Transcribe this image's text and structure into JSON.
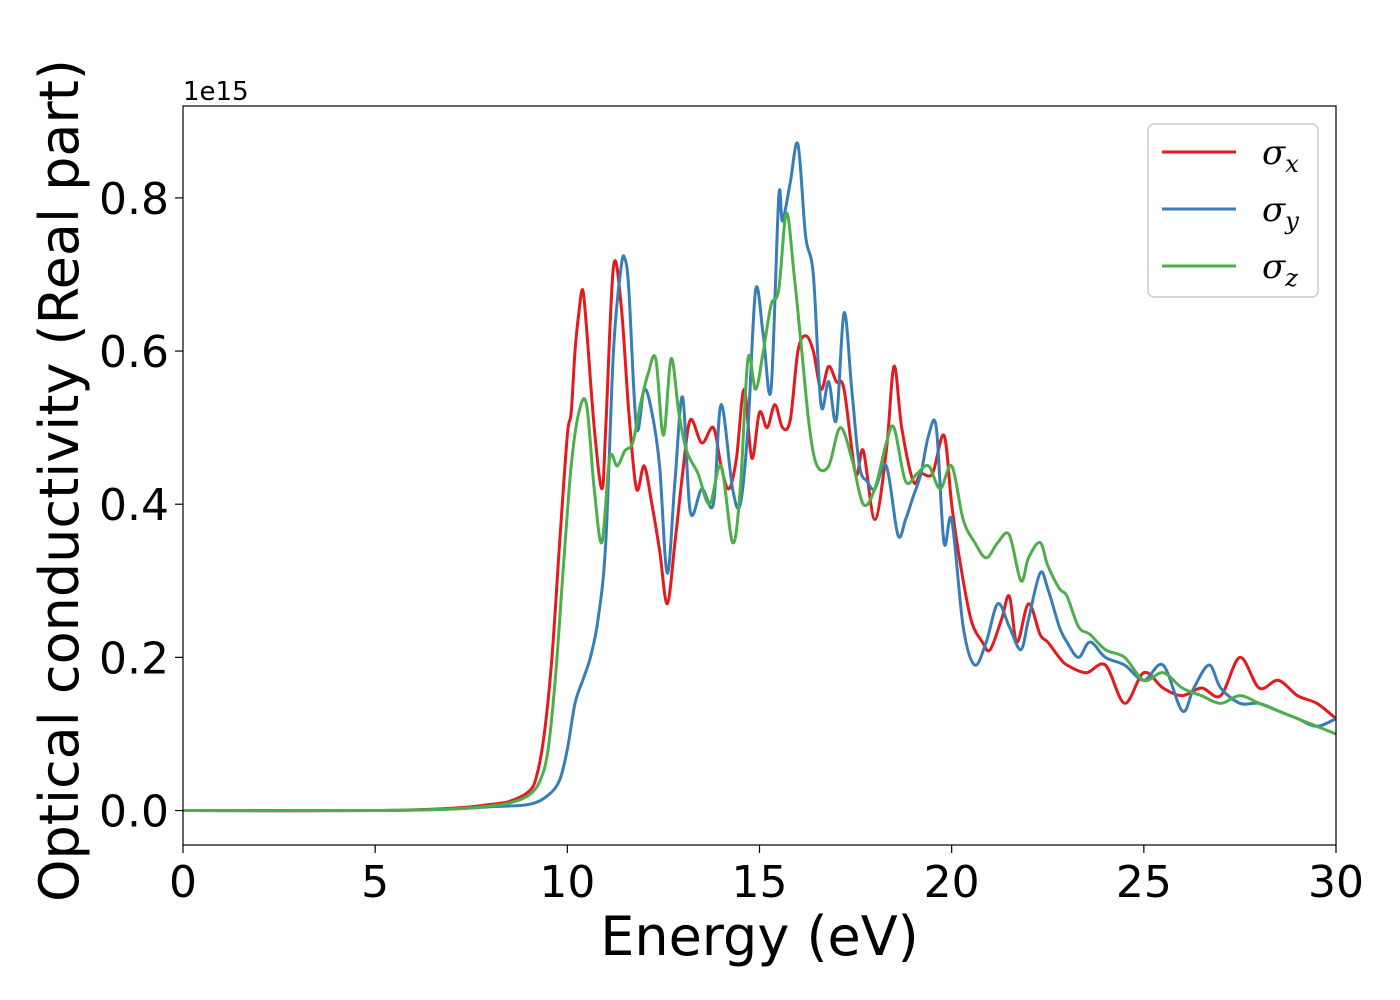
{
  "chart_data": {
    "type": "line",
    "xlabel": "Energy (eV)",
    "ylabel": "Optical conductivity (Real part)",
    "y_offset_label": "1e15",
    "xlim": [
      0,
      30
    ],
    "ylim": [
      -0.045,
      0.92
    ],
    "xticks": [
      0,
      5,
      10,
      15,
      20,
      25,
      30
    ],
    "yticks": [
      0.0,
      0.2,
      0.4,
      0.6,
      0.8
    ],
    "ytick_labels": [
      "0.0",
      "0.2",
      "0.4",
      "0.6",
      "0.8"
    ],
    "grid": false,
    "legend_position": "top-right",
    "series": [
      {
        "name": "σx",
        "legend": {
          "symbol": "σ",
          "sub": "x"
        },
        "color": "#e41a1c",
        "x": [
          0,
          5,
          7,
          8,
          8.5,
          9,
          9.2,
          9.4,
          9.6,
          9.8,
          10.0,
          10.1,
          10.2,
          10.3,
          10.4,
          10.5,
          10.7,
          10.9,
          11.0,
          11.2,
          11.4,
          11.6,
          11.8,
          12.0,
          12.2,
          12.4,
          12.6,
          12.8,
          13.0,
          13.2,
          13.5,
          13.8,
          14.0,
          14.2,
          14.4,
          14.6,
          14.8,
          15.0,
          15.2,
          15.4,
          15.6,
          15.8,
          16.0,
          16.2,
          16.4,
          16.6,
          16.8,
          17.0,
          17.2,
          17.5,
          17.7,
          18.0,
          18.3,
          18.5,
          18.7,
          19.0,
          19.2,
          19.5,
          19.8,
          20.0,
          20.2,
          20.5,
          20.8,
          21.0,
          21.3,
          21.5,
          21.7,
          22.0,
          22.3,
          22.5,
          22.8,
          23.0,
          23.5,
          24.0,
          24.5,
          25.0,
          25.5,
          26.0,
          26.5,
          27.0,
          27.5,
          28.0,
          28.5,
          29.0,
          29.5,
          30.0
        ],
        "y": [
          0,
          0,
          0.003,
          0.008,
          0.012,
          0.025,
          0.045,
          0.1,
          0.2,
          0.35,
          0.49,
          0.52,
          0.6,
          0.65,
          0.68,
          0.63,
          0.5,
          0.42,
          0.5,
          0.71,
          0.66,
          0.52,
          0.42,
          0.45,
          0.4,
          0.34,
          0.27,
          0.35,
          0.44,
          0.51,
          0.48,
          0.5,
          0.45,
          0.42,
          0.46,
          0.55,
          0.46,
          0.52,
          0.5,
          0.53,
          0.5,
          0.51,
          0.6,
          0.62,
          0.6,
          0.55,
          0.58,
          0.56,
          0.55,
          0.44,
          0.47,
          0.38,
          0.47,
          0.58,
          0.5,
          0.43,
          0.44,
          0.44,
          0.49,
          0.4,
          0.33,
          0.25,
          0.22,
          0.21,
          0.25,
          0.28,
          0.22,
          0.27,
          0.23,
          0.22,
          0.2,
          0.19,
          0.18,
          0.19,
          0.14,
          0.18,
          0.16,
          0.15,
          0.16,
          0.15,
          0.2,
          0.16,
          0.17,
          0.15,
          0.14,
          0.12
        ]
      },
      {
        "name": "σy",
        "legend": {
          "symbol": "σ",
          "sub": "y"
        },
        "color": "#377eb8",
        "x": [
          0,
          5,
          7,
          8,
          9,
          9.5,
          9.8,
          10.0,
          10.2,
          10.4,
          10.6,
          10.8,
          11.0,
          11.2,
          11.4,
          11.5,
          11.6,
          11.8,
          12.0,
          12.2,
          12.4,
          12.6,
          12.8,
          13.0,
          13.2,
          13.5,
          13.8,
          14.0,
          14.3,
          14.5,
          14.7,
          14.9,
          15.1,
          15.3,
          15.5,
          15.6,
          15.8,
          16.0,
          16.2,
          16.4,
          16.6,
          16.8,
          17.0,
          17.2,
          17.4,
          17.6,
          17.8,
          18.0,
          18.3,
          18.6,
          18.8,
          19.0,
          19.2,
          19.4,
          19.6,
          19.8,
          20.0,
          20.3,
          20.6,
          20.9,
          21.2,
          21.5,
          21.8,
          22.0,
          22.3,
          22.5,
          22.8,
          23.0,
          23.3,
          23.6,
          24.0,
          24.5,
          25.0,
          25.5,
          26.0,
          26.3,
          26.7,
          27.0,
          27.5,
          28.0,
          28.5,
          29.0,
          29.5,
          30.0
        ],
        "y": [
          0,
          0,
          0.002,
          0.005,
          0.008,
          0.02,
          0.04,
          0.08,
          0.14,
          0.17,
          0.2,
          0.25,
          0.35,
          0.6,
          0.71,
          0.72,
          0.68,
          0.5,
          0.55,
          0.52,
          0.45,
          0.31,
          0.43,
          0.54,
          0.39,
          0.42,
          0.4,
          0.53,
          0.42,
          0.4,
          0.5,
          0.68,
          0.62,
          0.55,
          0.8,
          0.77,
          0.82,
          0.87,
          0.75,
          0.7,
          0.53,
          0.56,
          0.51,
          0.65,
          0.55,
          0.45,
          0.43,
          0.42,
          0.45,
          0.36,
          0.38,
          0.41,
          0.44,
          0.49,
          0.5,
          0.35,
          0.38,
          0.24,
          0.19,
          0.22,
          0.27,
          0.24,
          0.21,
          0.25,
          0.31,
          0.29,
          0.24,
          0.22,
          0.2,
          0.22,
          0.2,
          0.19,
          0.17,
          0.19,
          0.13,
          0.16,
          0.19,
          0.16,
          0.14,
          0.14,
          0.13,
          0.12,
          0.11,
          0.12
        ]
      },
      {
        "name": "σz",
        "legend": {
          "symbol": "σ",
          "sub": "z"
        },
        "color": "#4daf4a",
        "x": [
          0,
          5,
          7,
          8,
          8.5,
          9,
          9.3,
          9.5,
          9.7,
          9.9,
          10.1,
          10.3,
          10.5,
          10.7,
          10.9,
          11.1,
          11.3,
          11.5,
          11.7,
          11.9,
          12.1,
          12.3,
          12.5,
          12.7,
          12.9,
          13.1,
          13.4,
          13.7,
          14.0,
          14.3,
          14.5,
          14.7,
          14.9,
          15.1,
          15.3,
          15.5,
          15.7,
          15.9,
          16.1,
          16.3,
          16.5,
          16.8,
          17.1,
          17.4,
          17.7,
          18.0,
          18.3,
          18.5,
          18.8,
          19.1,
          19.4,
          19.7,
          20.0,
          20.3,
          20.6,
          20.9,
          21.2,
          21.5,
          21.8,
          22.0,
          22.3,
          22.5,
          22.8,
          23.0,
          23.3,
          23.6,
          24.0,
          24.5,
          25.0,
          25.5,
          26.0,
          26.5,
          27.0,
          27.5,
          28.0,
          28.5,
          29.0,
          29.5,
          30.0
        ],
        "y": [
          0,
          0,
          0.002,
          0.006,
          0.01,
          0.02,
          0.04,
          0.08,
          0.18,
          0.32,
          0.45,
          0.52,
          0.53,
          0.42,
          0.35,
          0.46,
          0.45,
          0.47,
          0.48,
          0.53,
          0.57,
          0.59,
          0.49,
          0.59,
          0.52,
          0.47,
          0.44,
          0.4,
          0.45,
          0.35,
          0.42,
          0.59,
          0.55,
          0.6,
          0.66,
          0.68,
          0.78,
          0.7,
          0.6,
          0.5,
          0.45,
          0.45,
          0.5,
          0.46,
          0.4,
          0.42,
          0.48,
          0.5,
          0.43,
          0.44,
          0.45,
          0.42,
          0.45,
          0.38,
          0.35,
          0.33,
          0.35,
          0.36,
          0.3,
          0.33,
          0.35,
          0.32,
          0.29,
          0.28,
          0.24,
          0.23,
          0.21,
          0.2,
          0.17,
          0.18,
          0.16,
          0.15,
          0.14,
          0.15,
          0.14,
          0.13,
          0.12,
          0.11,
          0.1
        ]
      }
    ]
  }
}
